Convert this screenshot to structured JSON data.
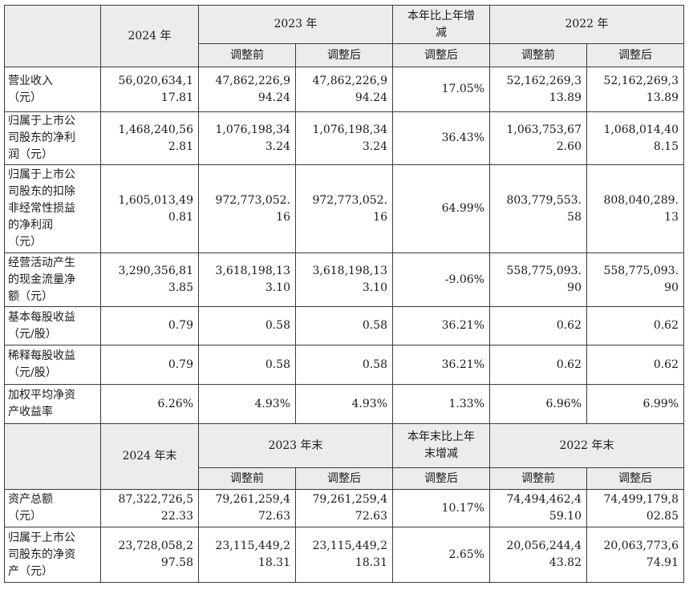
{
  "table": {
    "header1": {
      "year_2024": "2024 年",
      "year_2023": "2023 年",
      "change": [
        "本年比上年增",
        "减"
      ],
      "year_2022": "2022 年"
    },
    "sub_header": {
      "before": "调整前",
      "after": "调整后"
    },
    "rows1": [
      {
        "label": [
          "营业收入",
          "（元）"
        ],
        "v2024": [
          "56,020,634,1",
          "17.81"
        ],
        "v2023_before": [
          "47,862,226,9",
          "94.24"
        ],
        "v2023_after": [
          "47,862,226,9",
          "94.24"
        ],
        "change": [
          "17.05%"
        ],
        "v2022_before": [
          "52,162,269,3",
          "13.89"
        ],
        "v2022_after": [
          "52,162,269,3",
          "13.89"
        ]
      },
      {
        "label": [
          "归属于上市公",
          "司股东的净利",
          "润（元）"
        ],
        "v2024": [
          "1,468,240,56",
          "2.81"
        ],
        "v2023_before": [
          "1,076,198,34",
          "3.24"
        ],
        "v2023_after": [
          "1,076,198,34",
          "3.24"
        ],
        "change": [
          "36.43%"
        ],
        "v2022_before": [
          "1,063,753,67",
          "2.60"
        ],
        "v2022_after": [
          "1,068,014,40",
          "8.15"
        ]
      },
      {
        "label": [
          "归属于上市公",
          "司股东的扣除",
          "非经常性损益",
          "的净利润",
          "（元）"
        ],
        "v2024": [
          "1,605,013,49",
          "0.81"
        ],
        "v2023_before": [
          "972,773,052.",
          "16"
        ],
        "v2023_after": [
          "972,773,052.",
          "16"
        ],
        "change": [
          "64.99%"
        ],
        "v2022_before": [
          "803,779,553.",
          "58"
        ],
        "v2022_after": [
          "808,040,289.",
          "13"
        ]
      },
      {
        "label": [
          "经营活动产生",
          "的现金流量净",
          "额（元）"
        ],
        "v2024": [
          "3,290,356,81",
          "3.85"
        ],
        "v2023_before": [
          "3,618,198,13",
          "3.10"
        ],
        "v2023_after": [
          "3,618,198,13",
          "3.10"
        ],
        "change": [
          "-9.06%"
        ],
        "v2022_before": [
          "558,775,093.",
          "90"
        ],
        "v2022_after": [
          "558,775,093.",
          "90"
        ]
      },
      {
        "label": [
          "基本每股收益",
          "（元/股）"
        ],
        "v2024": [
          "0.79"
        ],
        "v2023_before": [
          "0.58"
        ],
        "v2023_after": [
          "0.58"
        ],
        "change": [
          "36.21%"
        ],
        "v2022_before": [
          "0.62"
        ],
        "v2022_after": [
          "0.62"
        ]
      },
      {
        "label": [
          "稀释每股收益",
          "（元/股）"
        ],
        "v2024": [
          "0.79"
        ],
        "v2023_before": [
          "0.58"
        ],
        "v2023_after": [
          "0.58"
        ],
        "change": [
          "36.21%"
        ],
        "v2022_before": [
          "0.62"
        ],
        "v2022_after": [
          "0.62"
        ]
      },
      {
        "label": [
          "加权平均净资",
          "产收益率"
        ],
        "v2024": [
          "6.26%"
        ],
        "v2023_before": [
          "4.93%"
        ],
        "v2023_after": [
          "4.93%"
        ],
        "change": [
          "1.33%"
        ],
        "v2022_before": [
          "6.96%"
        ],
        "v2022_after": [
          "6.99%"
        ]
      }
    ],
    "header2": {
      "year_2024": "2024 年末",
      "year_2023": "2023 年末",
      "change": [
        "本年末比上年",
        "末增减"
      ],
      "year_2022": "2022 年末"
    },
    "rows2": [
      {
        "label": [
          "资产总额",
          "（元）"
        ],
        "v2024": [
          "87,322,726,5",
          "22.33"
        ],
        "v2023_before": [
          "79,261,259,4",
          "72.63"
        ],
        "v2023_after": [
          "79,261,259,4",
          "72.63"
        ],
        "change": [
          "10.17%"
        ],
        "v2022_before": [
          "74,494,462,4",
          "59.10"
        ],
        "v2022_after": [
          "74,499,179,8",
          "02.85"
        ]
      },
      {
        "label": [
          "归属于上市公",
          "司股东的净资",
          "产（元）"
        ],
        "v2024": [
          "23,728,058,2",
          "97.58"
        ],
        "v2023_before": [
          "23,115,449,2",
          "18.31"
        ],
        "v2023_after": [
          "23,115,449,2",
          "18.31"
        ],
        "change": [
          "2.65%"
        ],
        "v2022_before": [
          "20,056,244,4",
          "43.82"
        ],
        "v2022_after": [
          "20,063,773,6",
          "74.91"
        ]
      }
    ]
  }
}
